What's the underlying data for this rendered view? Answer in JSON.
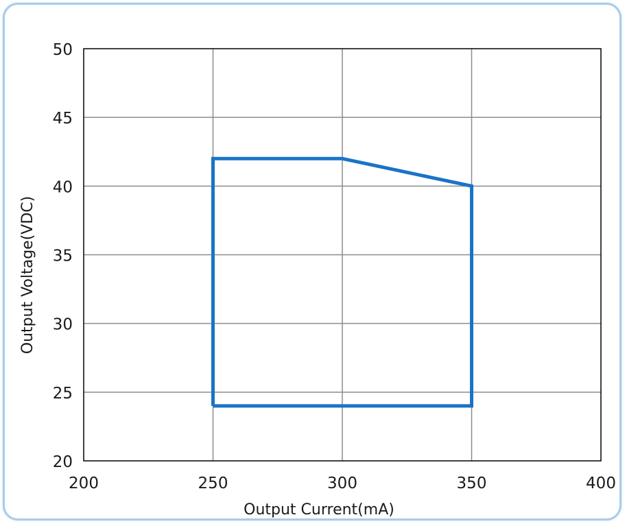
{
  "chart_data": {
    "type": "line",
    "title": "",
    "xlabel": "Output Current(mA)",
    "ylabel": "Output Voltage(VDC)",
    "xlim": [
      200,
      400
    ],
    "ylim": [
      20,
      50
    ],
    "xticks": [
      200,
      250,
      300,
      350,
      400
    ],
    "yticks": [
      20,
      25,
      30,
      35,
      40,
      45,
      50
    ],
    "x_tick_labels": [
      "200",
      "250",
      "300",
      "350",
      "400"
    ],
    "y_tick_labels": [
      "20",
      "25",
      "30",
      "35",
      "40",
      "45",
      "50"
    ],
    "grid": true,
    "legend": "none",
    "series": [
      {
        "color": "#1a73c8",
        "closed": true,
        "points": [
          {
            "x": 250,
            "y": 24
          },
          {
            "x": 250,
            "y": 42
          },
          {
            "x": 300,
            "y": 42
          },
          {
            "x": 350,
            "y": 40
          },
          {
            "x": 350,
            "y": 24
          },
          {
            "x": 250,
            "y": 24
          }
        ]
      }
    ]
  },
  "colors": {
    "frame_border": "#a9cbea",
    "grid": "#8c8c8c",
    "axis": "#000000"
  }
}
